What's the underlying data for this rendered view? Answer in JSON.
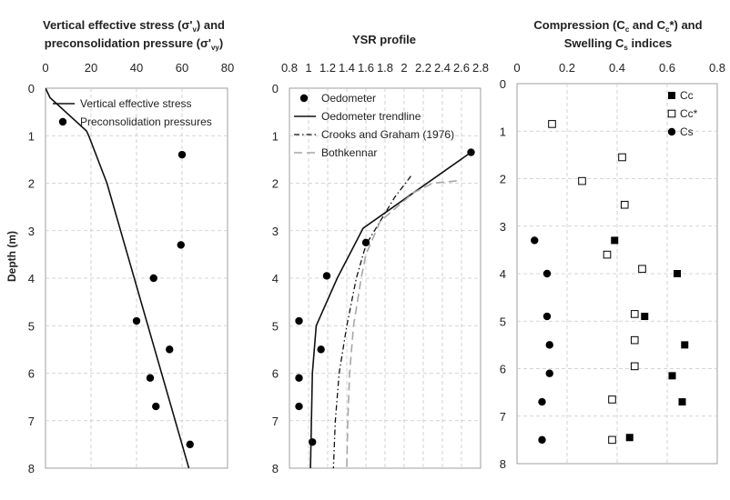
{
  "chart_data": [
    {
      "type": "scatter",
      "id": "stress",
      "title_lines": [
        "Vertical effective stress (σ'ᵥ) and",
        "preconsolidation pressure (σ'ᵥᵧ)"
      ],
      "ylabel": "Depth (m)",
      "xlim": [
        0,
        80
      ],
      "xticks": [
        "0",
        "20",
        "40",
        "60",
        "80"
      ],
      "ylim": [
        0,
        8
      ],
      "yticks": [
        "0",
        "1",
        "2",
        "3",
        "4",
        "5",
        "6",
        "7",
        "8"
      ],
      "legend": [
        "Vertical effective stress",
        "Preconsolidation pressures"
      ],
      "series": [
        {
          "name": "Vertical effective stress",
          "style": "line",
          "points": [
            [
              0,
              0
            ],
            [
              2,
              0.2
            ],
            [
              18,
              0.9
            ],
            [
              19,
              1.0
            ],
            [
              27,
              2.0
            ],
            [
              63,
              8.0
            ]
          ]
        },
        {
          "name": "Preconsolidation pressures",
          "style": "dot",
          "points": [
            [
              60,
              1.4
            ],
            [
              59.5,
              3.3
            ],
            [
              47.5,
              4.0
            ],
            [
              40,
              4.9
            ],
            [
              54.5,
              5.5
            ],
            [
              46,
              6.1
            ],
            [
              48.5,
              6.7
            ],
            [
              63.5,
              7.5
            ]
          ]
        }
      ]
    },
    {
      "type": "scatter",
      "id": "ysr",
      "title_lines": [
        "YSR profile"
      ],
      "xlim": [
        0.8,
        2.8
      ],
      "xticks": [
        "0.8",
        "1",
        "1.2",
        "1.4",
        "1.6",
        "1.8",
        "2",
        "2.2",
        "2.4",
        "2.6",
        "2.8"
      ],
      "ylim": [
        0,
        8
      ],
      "yticks": [
        "0",
        "1",
        "2",
        "3",
        "4",
        "5",
        "6",
        "7",
        "8"
      ],
      "legend": [
        "Oedometer",
        "Oedometer trendline",
        "Crooks and Graham (1976)",
        "Bothkennar"
      ],
      "series": [
        {
          "name": "Oedometer",
          "style": "dot",
          "points": [
            [
              2.7,
              1.35
            ],
            [
              1.6,
              3.25
            ],
            [
              1.19,
              3.95
            ],
            [
              0.9,
              4.9
            ],
            [
              1.13,
              5.5
            ],
            [
              0.9,
              6.1
            ],
            [
              0.9,
              6.7
            ],
            [
              1.04,
              7.45
            ]
          ]
        },
        {
          "name": "Oedometer trendline",
          "style": "line",
          "points": [
            [
              2.7,
              1.35
            ],
            [
              1.57,
              2.95
            ],
            [
              1.3,
              4.0
            ],
            [
              1.08,
              5.0
            ],
            [
              1.04,
              6.0
            ],
            [
              1.02,
              8.0
            ]
          ]
        },
        {
          "name": "Crooks and Graham (1976)",
          "style": "dashdot",
          "points": [
            [
              2.07,
              1.85
            ],
            [
              1.9,
              2.3
            ],
            [
              1.6,
              3.3
            ],
            [
              1.5,
              4.0
            ],
            [
              1.4,
              5.0
            ],
            [
              1.32,
              6.0
            ],
            [
              1.28,
              7.0
            ],
            [
              1.26,
              8.0
            ]
          ]
        },
        {
          "name": "Bothkennar",
          "style": "dash",
          "points": [
            [
              2.55,
              1.95
            ],
            [
              2.3,
              2.0
            ],
            [
              2.1,
              2.2
            ],
            [
              1.75,
              2.8
            ],
            [
              1.6,
              3.5
            ],
            [
              1.55,
              4.0
            ],
            [
              1.47,
              5.0
            ],
            [
              1.43,
              6.0
            ],
            [
              1.41,
              7.0
            ],
            [
              1.4,
              8.0
            ]
          ]
        }
      ]
    },
    {
      "type": "scatter",
      "id": "indices",
      "title_lines": [
        "Compression (Cc and Cc*) and",
        "Swelling Cs indices"
      ],
      "xlim": [
        0,
        0.8
      ],
      "xticks": [
        "0",
        "0.2",
        "0.4",
        "0.6",
        "0.8"
      ],
      "ylim": [
        0,
        8
      ],
      "yticks": [
        "0",
        "1",
        "2",
        "3",
        "4",
        "5",
        "6",
        "7",
        "8"
      ],
      "legend": [
        "Cc",
        "Cc*",
        "Cs"
      ],
      "series": [
        {
          "name": "Cc",
          "style": "filled-square",
          "points": [
            [
              0.39,
              3.3
            ],
            [
              0.64,
              4.0
            ],
            [
              0.51,
              4.9
            ],
            [
              0.67,
              5.5
            ],
            [
              0.62,
              6.15
            ],
            [
              0.66,
              6.7
            ],
            [
              0.45,
              7.45
            ]
          ]
        },
        {
          "name": "Cc*",
          "style": "open-square",
          "points": [
            [
              0.14,
              0.85
            ],
            [
              0.42,
              1.55
            ],
            [
              0.26,
              2.05
            ],
            [
              0.43,
              2.55
            ],
            [
              0.36,
              3.6
            ],
            [
              0.5,
              3.9
            ],
            [
              0.47,
              4.85
            ],
            [
              0.47,
              5.4
            ],
            [
              0.47,
              5.95
            ],
            [
              0.38,
              6.65
            ],
            [
              0.38,
              7.5
            ]
          ]
        },
        {
          "name": "Cs",
          "style": "dot",
          "points": [
            [
              0.07,
              3.3
            ],
            [
              0.12,
              4.0
            ],
            [
              0.12,
              4.9
            ],
            [
              0.13,
              5.5
            ],
            [
              0.13,
              6.1
            ],
            [
              0.1,
              6.7
            ],
            [
              0.1,
              7.5
            ]
          ]
        }
      ]
    }
  ]
}
